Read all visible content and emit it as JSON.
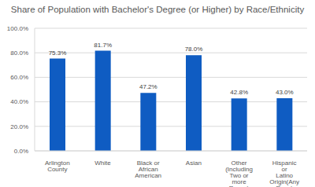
{
  "chart_data": {
    "type": "bar",
    "title": "Share of Population with Bachelor's Degree (or Higher) by Race/Ethnicity",
    "categories": [
      "Arlington County",
      "White",
      "Black or African American",
      "Asian",
      "Other (Including Two or more Races)",
      "Hispanic or Latino Origin(Any Race)"
    ],
    "values": [
      75.3,
      81.7,
      47.2,
      78.0,
      42.8,
      43.0
    ],
    "value_labels": [
      "75.3%",
      "81.7%",
      "47.2%",
      "78.0%",
      "42.8%",
      "43.0%"
    ],
    "data_labels": true,
    "color": "#0f5cc2",
    "ylim": [
      0,
      100
    ],
    "yticks": [
      {
        "value": 0,
        "label": "0.0%"
      },
      {
        "value": 20,
        "label": "20.0%"
      },
      {
        "value": 40,
        "label": "40.0%"
      },
      {
        "value": 60,
        "label": "60.0%"
      },
      {
        "value": 80,
        "label": "80.0%"
      },
      {
        "value": 100,
        "label": "100.0%"
      }
    ],
    "grid": true
  }
}
